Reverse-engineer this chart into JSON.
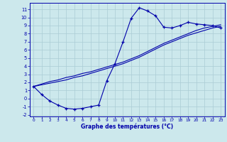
{
  "xlabel": "Graphe des températures (°C)",
  "bg_color": "#cce8ec",
  "grid_color": "#aaccd4",
  "line_color": "#0000aa",
  "hours": [
    0,
    1,
    2,
    3,
    4,
    5,
    6,
    7,
    8,
    9,
    10,
    11,
    12,
    13,
    14,
    15,
    16,
    17,
    18,
    19,
    20,
    21,
    22,
    23
  ],
  "temps": [
    1.5,
    0.5,
    -0.3,
    -0.8,
    -1.2,
    -1.3,
    -1.2,
    -1.0,
    -0.8,
    2.2,
    4.3,
    7.0,
    9.9,
    11.2,
    10.8,
    10.2,
    8.8,
    8.7,
    9.0,
    9.4,
    9.2,
    9.1,
    9.0,
    8.7
  ],
  "line1": [
    1.5,
    1.8,
    2.1,
    2.3,
    2.6,
    2.8,
    3.1,
    3.3,
    3.6,
    3.9,
    4.2,
    4.5,
    4.9,
    5.3,
    5.8,
    6.3,
    6.8,
    7.2,
    7.6,
    8.0,
    8.4,
    8.7,
    8.9,
    9.1
  ],
  "line2": [
    1.5,
    1.7,
    1.9,
    2.1,
    2.3,
    2.6,
    2.8,
    3.1,
    3.4,
    3.7,
    4.0,
    4.3,
    4.7,
    5.1,
    5.6,
    6.1,
    6.6,
    7.0,
    7.4,
    7.8,
    8.1,
    8.4,
    8.7,
    8.9
  ],
  "ylim": [
    -2.2,
    11.8
  ],
  "xlim": [
    -0.5,
    23.5
  ],
  "yticks": [
    -2,
    -1,
    0,
    1,
    2,
    3,
    4,
    5,
    6,
    7,
    8,
    9,
    10,
    11
  ],
  "xticks": [
    0,
    1,
    2,
    3,
    4,
    5,
    6,
    7,
    8,
    9,
    10,
    11,
    12,
    13,
    14,
    15,
    16,
    17,
    18,
    19,
    20,
    21,
    22,
    23
  ]
}
